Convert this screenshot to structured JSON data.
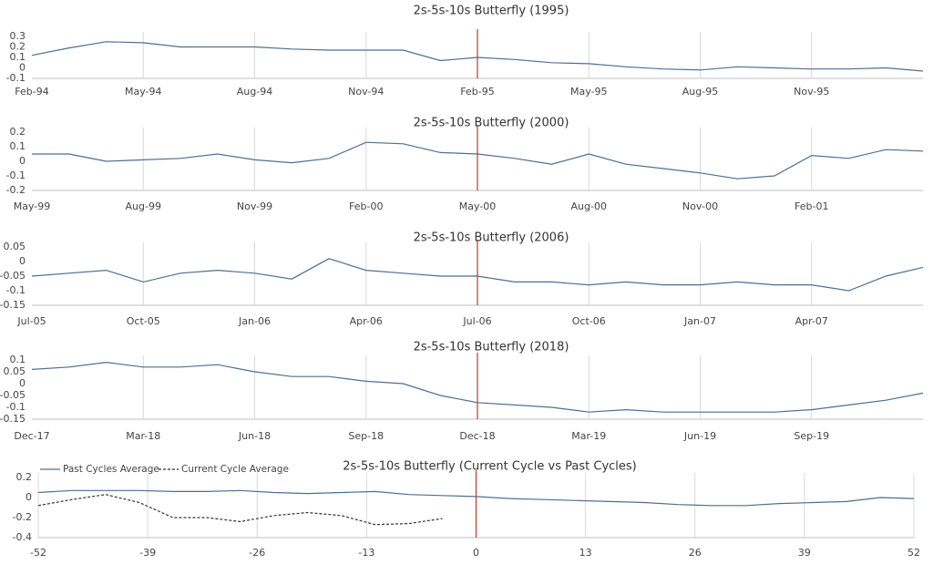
{
  "chart_data": [
    {
      "type": "line",
      "title": "2s-5s-10s Butterfly (1995)",
      "color": "#4f6f8f",
      "grid": "x",
      "vline": "Feb-95",
      "vline_color": "#c0392b",
      "categories": [
        "Feb-94",
        null,
        null,
        "May-94",
        null,
        null,
        "Aug-94",
        null,
        null,
        "Nov-94",
        null,
        null,
        "Feb-95",
        null,
        null,
        "May-95",
        null,
        null,
        "Aug-95",
        null,
        null,
        "Nov-95",
        null,
        null,
        null
      ],
      "values": [
        0.12,
        0.19,
        0.25,
        0.24,
        0.2,
        0.2,
        0.2,
        0.18,
        0.17,
        0.17,
        0.17,
        0.07,
        0.1,
        0.08,
        0.05,
        0.04,
        0.01,
        -0.01,
        -0.02,
        0.01,
        0.0,
        -0.01,
        -0.01,
        0.0,
        -0.03
      ],
      "ylim": [
        -0.1,
        0.3
      ],
      "yticks": [
        -0.1,
        0,
        0.1,
        0.2,
        0.3
      ]
    },
    {
      "type": "line",
      "title": "2s-5s-10s Butterfly (2000)",
      "color": "#4f6f8f",
      "grid": "x",
      "vline": "May-00",
      "vline_color": "#c0392b",
      "categories": [
        "May-99",
        null,
        null,
        "Aug-99",
        null,
        null,
        "Nov-99",
        null,
        null,
        "Feb-00",
        null,
        null,
        "May-00",
        null,
        null,
        "Aug-00",
        null,
        null,
        "Nov-00",
        null,
        null,
        "Feb-01",
        null,
        null,
        null
      ],
      "values": [
        0.05,
        0.05,
        0.0,
        0.01,
        0.02,
        0.05,
        0.01,
        -0.01,
        0.02,
        0.13,
        0.12,
        0.06,
        0.05,
        0.02,
        -0.02,
        0.05,
        -0.02,
        -0.05,
        -0.08,
        -0.12,
        -0.1,
        0.04,
        0.02,
        0.08,
        0.07
      ],
      "ylim": [
        -0.2,
        0.2
      ],
      "yticks": [
        -0.2,
        -0.1,
        0,
        0.1,
        0.2
      ]
    },
    {
      "type": "line",
      "title": "2s-5s-10s Butterfly (2006)",
      "color": "#4f6f8f",
      "grid": "x",
      "vline": "Jul-06",
      "vline_color": "#c0392b",
      "categories": [
        "Jul-05",
        null,
        null,
        "Oct-05",
        null,
        null,
        "Jan-06",
        null,
        null,
        "Apr-06",
        null,
        null,
        "Jul-06",
        null,
        null,
        "Oct-06",
        null,
        null,
        "Jan-07",
        null,
        null,
        "Apr-07",
        null,
        null,
        null
      ],
      "values": [
        -0.05,
        -0.04,
        -0.03,
        -0.07,
        -0.04,
        -0.03,
        -0.04,
        -0.06,
        0.01,
        -0.03,
        -0.04,
        -0.05,
        -0.05,
        -0.07,
        -0.07,
        -0.08,
        -0.07,
        -0.08,
        -0.08,
        -0.07,
        -0.08,
        -0.08,
        -0.1,
        -0.05,
        -0.02
      ],
      "ylim": [
        -0.15,
        0.05
      ],
      "yticks": [
        -0.15,
        -0.1,
        -0.05,
        0,
        0.05
      ]
    },
    {
      "type": "line",
      "title": "2s-5s-10s Butterfly (2018)",
      "color": "#4f6f8f",
      "grid": "x",
      "vline": "Dec-18",
      "vline_color": "#c0392b",
      "categories": [
        "Dec-17",
        null,
        null,
        "Mar-18",
        null,
        null,
        "Jun-18",
        null,
        null,
        "Sep-18",
        null,
        null,
        "Dec-18",
        null,
        null,
        "Mar-19",
        null,
        null,
        "Jun-19",
        null,
        null,
        "Sep-19",
        null,
        null,
        null
      ],
      "values": [
        0.06,
        0.07,
        0.09,
        0.07,
        0.07,
        0.08,
        0.05,
        0.03,
        0.03,
        0.01,
        0.0,
        -0.05,
        -0.08,
        -0.09,
        -0.1,
        -0.12,
        -0.11,
        -0.12,
        -0.12,
        -0.12,
        -0.12,
        -0.11,
        -0.09,
        -0.07,
        -0.04
      ],
      "ylim": [
        -0.15,
        0.1
      ],
      "yticks": [
        -0.15,
        -0.1,
        -0.05,
        0,
        0.05,
        0.1
      ]
    },
    {
      "type": "line",
      "title": "2s-5s-10s Butterfly (Current Cycle vs Past Cycles)",
      "grid": "x",
      "vline": 0,
      "vline_color": "#c0392b",
      "legend": "top-left",
      "x": [
        -52,
        -48,
        -44,
        -40,
        -36,
        -32,
        -28,
        -24,
        -20,
        -16,
        -12,
        -8,
        -4,
        0,
        4,
        8,
        12,
        16,
        20,
        24,
        28,
        32,
        36,
        40,
        44,
        48,
        52
      ],
      "series": [
        {
          "name": "Past Cycles Average",
          "color": "#4f6f8f",
          "dash": "solid",
          "values": [
            0.05,
            0.07,
            0.07,
            0.07,
            0.06,
            0.06,
            0.07,
            0.05,
            0.04,
            0.05,
            0.06,
            0.03,
            0.02,
            0.01,
            -0.01,
            -0.02,
            -0.03,
            -0.04,
            -0.05,
            -0.07,
            -0.08,
            -0.08,
            -0.06,
            -0.05,
            -0.04,
            0.0,
            -0.01
          ]
        },
        {
          "name": "Current Cycle Average",
          "color": "#333333",
          "dash": "dashed",
          "values": [
            -0.08,
            -0.02,
            0.03,
            -0.05,
            -0.2,
            -0.2,
            -0.24,
            -0.18,
            -0.15,
            -0.18,
            -0.27,
            -0.26,
            -0.21,
            null,
            null,
            null,
            null,
            null,
            null,
            null,
            null,
            null,
            null,
            null,
            null,
            null,
            null
          ]
        }
      ],
      "xlim": [
        -52,
        52
      ],
      "xticks": [
        -52,
        -39,
        -26,
        -13,
        0,
        13,
        26,
        39,
        52
      ],
      "ylim": [
        -0.4,
        0.2
      ],
      "yticks": [
        -0.4,
        -0.2,
        0,
        0.2
      ]
    }
  ]
}
